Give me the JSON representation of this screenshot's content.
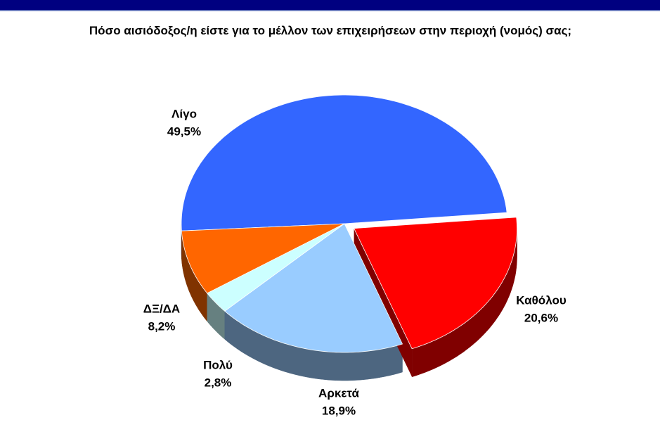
{
  "chart_data": {
    "type": "pie",
    "title": "Πόσο αισιόδοξος/η είστε για το μέλλον των επιχειρήσεων στην περιοχή (νομός)  σας;",
    "categories": [
      "Λίγο",
      "ΔΞ/ΔΑ",
      "Πολύ",
      "Αρκετά",
      "Καθόλου"
    ],
    "values": [
      49.5,
      8.2,
      2.8,
      18.9,
      20.6
    ],
    "value_labels": [
      "49,5%",
      "8,2%",
      "2,8%",
      "18,9%",
      "20,6%"
    ],
    "colors": [
      "#3366ff",
      "#ff6600",
      "#ccffff",
      "#99ccff",
      "#ff0000"
    ]
  }
}
